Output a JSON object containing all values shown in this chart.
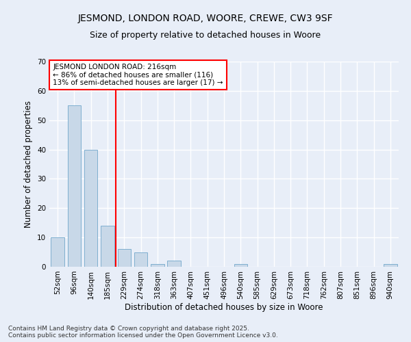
{
  "title1": "JESMOND, LONDON ROAD, WOORE, CREWE, CW3 9SF",
  "title2": "Size of property relative to detached houses in Woore",
  "xlabel": "Distribution of detached houses by size in Woore",
  "ylabel": "Number of detached properties",
  "categories": [
    "52sqm",
    "96sqm",
    "140sqm",
    "185sqm",
    "229sqm",
    "274sqm",
    "318sqm",
    "363sqm",
    "407sqm",
    "451sqm",
    "496sqm",
    "540sqm",
    "585sqm",
    "629sqm",
    "673sqm",
    "718sqm",
    "762sqm",
    "807sqm",
    "851sqm",
    "896sqm",
    "940sqm"
  ],
  "values": [
    10,
    55,
    40,
    14,
    6,
    5,
    1,
    2,
    0,
    0,
    0,
    1,
    0,
    0,
    0,
    0,
    0,
    0,
    0,
    0,
    1
  ],
  "bar_color": "#c8d8e8",
  "bar_edge_color": "#7fafd0",
  "vline_x_index": 4,
  "vline_color": "red",
  "annotation_text": "JESMOND LONDON ROAD: 216sqm\n← 86% of detached houses are smaller (116)\n13% of semi-detached houses are larger (17) →",
  "annotation_box_color": "white",
  "annotation_box_edge": "red",
  "ylim": [
    0,
    70
  ],
  "yticks": [
    0,
    10,
    20,
    30,
    40,
    50,
    60,
    70
  ],
  "bg_color": "#e8eef8",
  "grid_color": "white",
  "footer": "Contains HM Land Registry data © Crown copyright and database right 2025.\nContains public sector information licensed under the Open Government Licence v3.0.",
  "title_fontsize": 10,
  "subtitle_fontsize": 9,
  "axis_label_fontsize": 8.5,
  "tick_fontsize": 7.5,
  "annotation_fontsize": 7.5,
  "footer_fontsize": 6.5
}
